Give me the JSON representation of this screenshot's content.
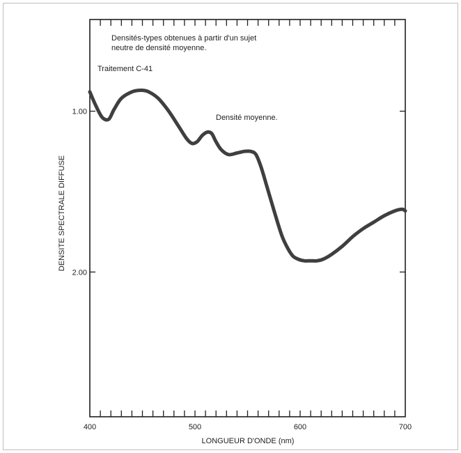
{
  "chart_data": {
    "type": "line",
    "title": "",
    "annotations": {
      "description_line1": "Densités-types obtenues à partir d'un sujet",
      "description_line2": "neutre de densité moyenne.",
      "process": "Traitement C-41",
      "curve_label": "Densité moyenne."
    },
    "xlabel": "LONGUEUR D'ONDE (nm)",
    "ylabel": "DENSITE SPECTRALE DIFFUSE",
    "xlim": [
      400,
      700
    ],
    "ylim": [
      2.9,
      0.43
    ],
    "y_inverted": true,
    "x_ticks": [
      400,
      500,
      600,
      700
    ],
    "x_tick_labels": [
      "400",
      "500",
      "600",
      "700"
    ],
    "y_ticks": [
      1.0,
      2.0
    ],
    "y_tick_labels": [
      "1.00",
      "2.00"
    ],
    "grid": false,
    "series": [
      {
        "name": "",
        "x": [
          400,
          406,
          412,
          418,
          423,
          430,
          440,
          449,
          456,
          465,
          475,
          485,
          492,
          497,
          502,
          507,
          512,
          516,
          520,
          525,
          532,
          540,
          547,
          553,
          558,
          563,
          568,
          573,
          578,
          583,
          588,
          593,
          598,
          604,
          610,
          616,
          622,
          630,
          640,
          650,
          660,
          670,
          680,
          690,
          697,
          700
        ],
        "y": [
          0.88,
          0.97,
          1.04,
          1.05,
          0.99,
          0.92,
          0.88,
          0.87,
          0.88,
          0.92,
          1.0,
          1.1,
          1.17,
          1.2,
          1.19,
          1.15,
          1.13,
          1.14,
          1.19,
          1.24,
          1.27,
          1.26,
          1.25,
          1.25,
          1.27,
          1.35,
          1.46,
          1.57,
          1.68,
          1.78,
          1.85,
          1.9,
          1.92,
          1.93,
          1.93,
          1.93,
          1.92,
          1.89,
          1.84,
          1.78,
          1.73,
          1.69,
          1.65,
          1.62,
          1.61,
          1.62
        ]
      }
    ]
  }
}
